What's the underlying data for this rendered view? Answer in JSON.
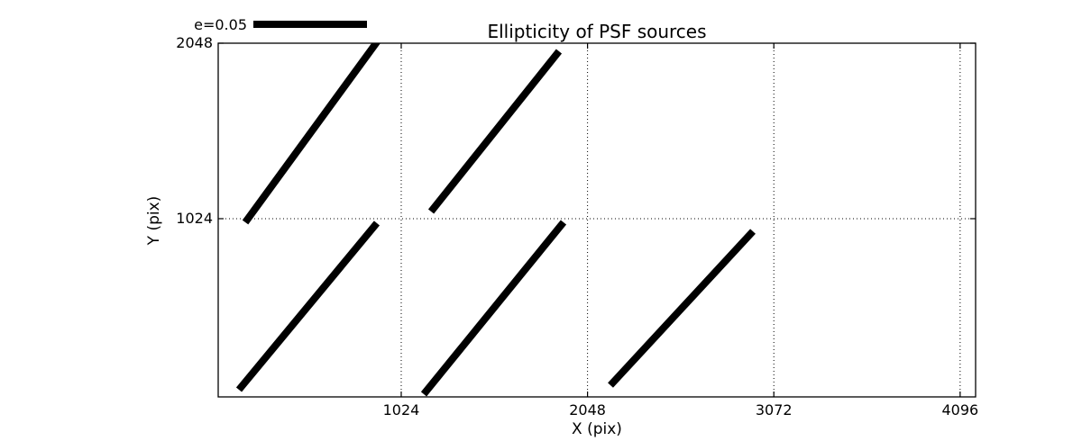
{
  "colors": {
    "foreground": "#000000",
    "background": "#ffffff"
  },
  "chart_data": {
    "type": "line",
    "title": "Ellipticity of PSF sources",
    "xlabel": "X (pix)",
    "ylabel": "Y (pix)",
    "xticks": [
      1024,
      2048,
      3072,
      4096
    ],
    "yticks": [
      1024,
      2048
    ],
    "xlim": [
      18,
      4181
    ],
    "ylim": [
      -16,
      2048
    ],
    "grid": "dotted",
    "legend": {
      "label": "e=0.05",
      "position": "upper-left-outside"
    },
    "series": [
      {
        "name": "psf-ellipticity-whiskers",
        "style": "thick-black-segment",
        "segments": [
          {
            "x1": 167,
            "y1": 1003,
            "x2": 904,
            "y2": 2075
          },
          {
            "x1": 1188,
            "y1": 1066,
            "x2": 1891,
            "y2": 2001
          },
          {
            "x1": 132,
            "y1": 26,
            "x2": 890,
            "y2": 998
          },
          {
            "x1": 1148,
            "y1": 0,
            "x2": 1916,
            "y2": 1003
          },
          {
            "x1": 2174,
            "y1": 52,
            "x2": 2957,
            "y2": 950
          }
        ]
      }
    ]
  }
}
